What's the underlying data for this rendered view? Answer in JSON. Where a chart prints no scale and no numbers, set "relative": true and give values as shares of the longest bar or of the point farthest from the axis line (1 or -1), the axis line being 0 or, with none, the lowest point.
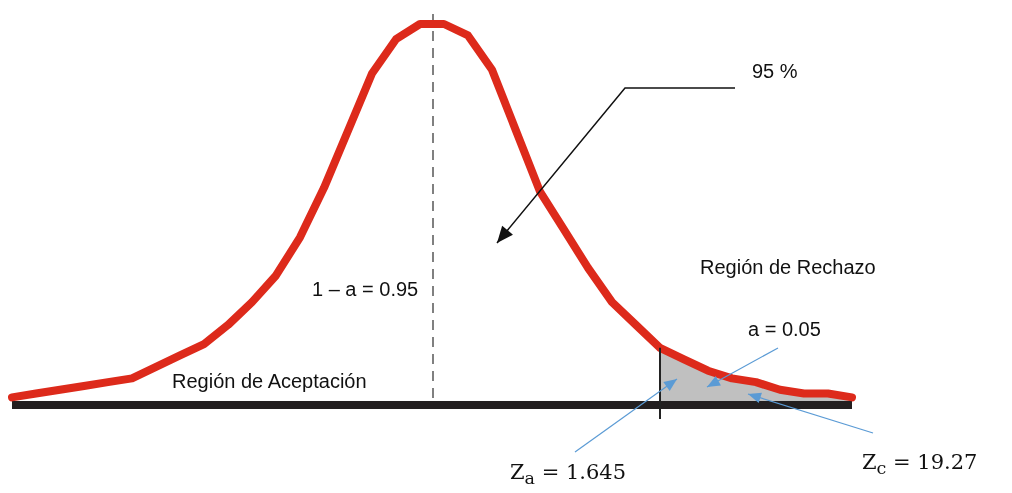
{
  "chart_data": {
    "type": "line",
    "relative": true,
    "categories": [
      null,
      null,
      null,
      null,
      null,
      null,
      null,
      null,
      null,
      null,
      null,
      null,
      null,
      null,
      null,
      null,
      null,
      null,
      null,
      null,
      null,
      null,
      null,
      null,
      null,
      null,
      null,
      null,
      null,
      null,
      null,
      null,
      null,
      null,
      null,
      null
    ],
    "series": [
      {
        "color": "#dd2a1b",
        "values": [
          0.02,
          0.03,
          0.04,
          0.05,
          0.06,
          0.07,
          0.1,
          0.13,
          0.16,
          0.21,
          0.27,
          0.34,
          0.44,
          0.57,
          0.72,
          0.87,
          0.96,
          1,
          1,
          0.97,
          0.88,
          0.72,
          0.56,
          0.46,
          0.36,
          0.27,
          0.21,
          0.15,
          0.12,
          0.09,
          0.07,
          0.06,
          0.04,
          0.03,
          0.03,
          0.02
        ]
      }
    ],
    "annotations": [
      "95 %",
      "1 – a = 0.95",
      "Región de Aceptación",
      "Región de Rechazo",
      "a = 0.05",
      "Z$_{a}$ = 1.645",
      "Z$_{c}$ = 19.27"
    ],
    "marker": "none"
  }
}
